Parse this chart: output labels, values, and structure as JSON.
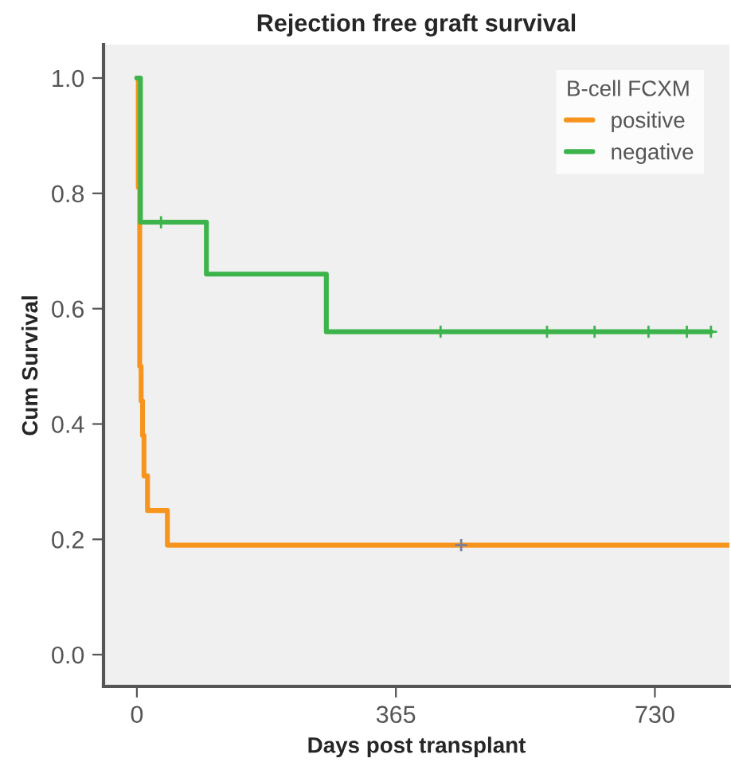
{
  "chart_data": {
    "type": "step",
    "title": "Rejection free graft survival",
    "xlabel": "Days post transplant",
    "ylabel": "Cum Survival",
    "legend_title": "B-cell FCXM",
    "legend": "top right",
    "grid": false,
    "xlim": [
      -47,
      835
    ],
    "xticks": [
      0,
      365,
      730
    ],
    "ylim": [
      -0.055,
      1.058
    ],
    "yticks": [
      {
        "value": 0,
        "label": "0.0"
      },
      {
        "value": 0.2,
        "label": "0.2"
      },
      {
        "value": 0.4,
        "label": "0.4"
      },
      {
        "value": 0.6,
        "label": "0.6"
      },
      {
        "value": 0.8,
        "label": "0.8"
      },
      {
        "value": 1.0,
        "label": "1.0"
      }
    ],
    "series": [
      {
        "name": "positive",
        "color": "#f7941d",
        "x": [
          0,
          2,
          4,
          6,
          8,
          10,
          15,
          43,
          835
        ],
        "values": [
          1.0,
          0.81,
          0.5,
          0.44,
          0.38,
          0.31,
          0.25,
          0.19,
          0.19
        ]
      },
      {
        "name": "negative",
        "color": "#3cb44b",
        "x": [
          0,
          5,
          98,
          267,
          809
        ],
        "values": [
          1.0,
          0.75,
          0.66,
          0.56,
          0.56
        ]
      },
      {
        "type": "scatter",
        "marker": "cross",
        "color": "#7a7f9a",
        "x": [
          457
        ],
        "values": [
          0.19
        ]
      },
      {
        "type": "scatter",
        "marker": "cross",
        "color": "#3cb44b",
        "x": [
          34,
          428,
          578,
          645,
          721,
          775,
          809
        ],
        "values": [
          0.75,
          0.56,
          0.56,
          0.56,
          0.56,
          0.56,
          0.56
        ]
      }
    ]
  }
}
